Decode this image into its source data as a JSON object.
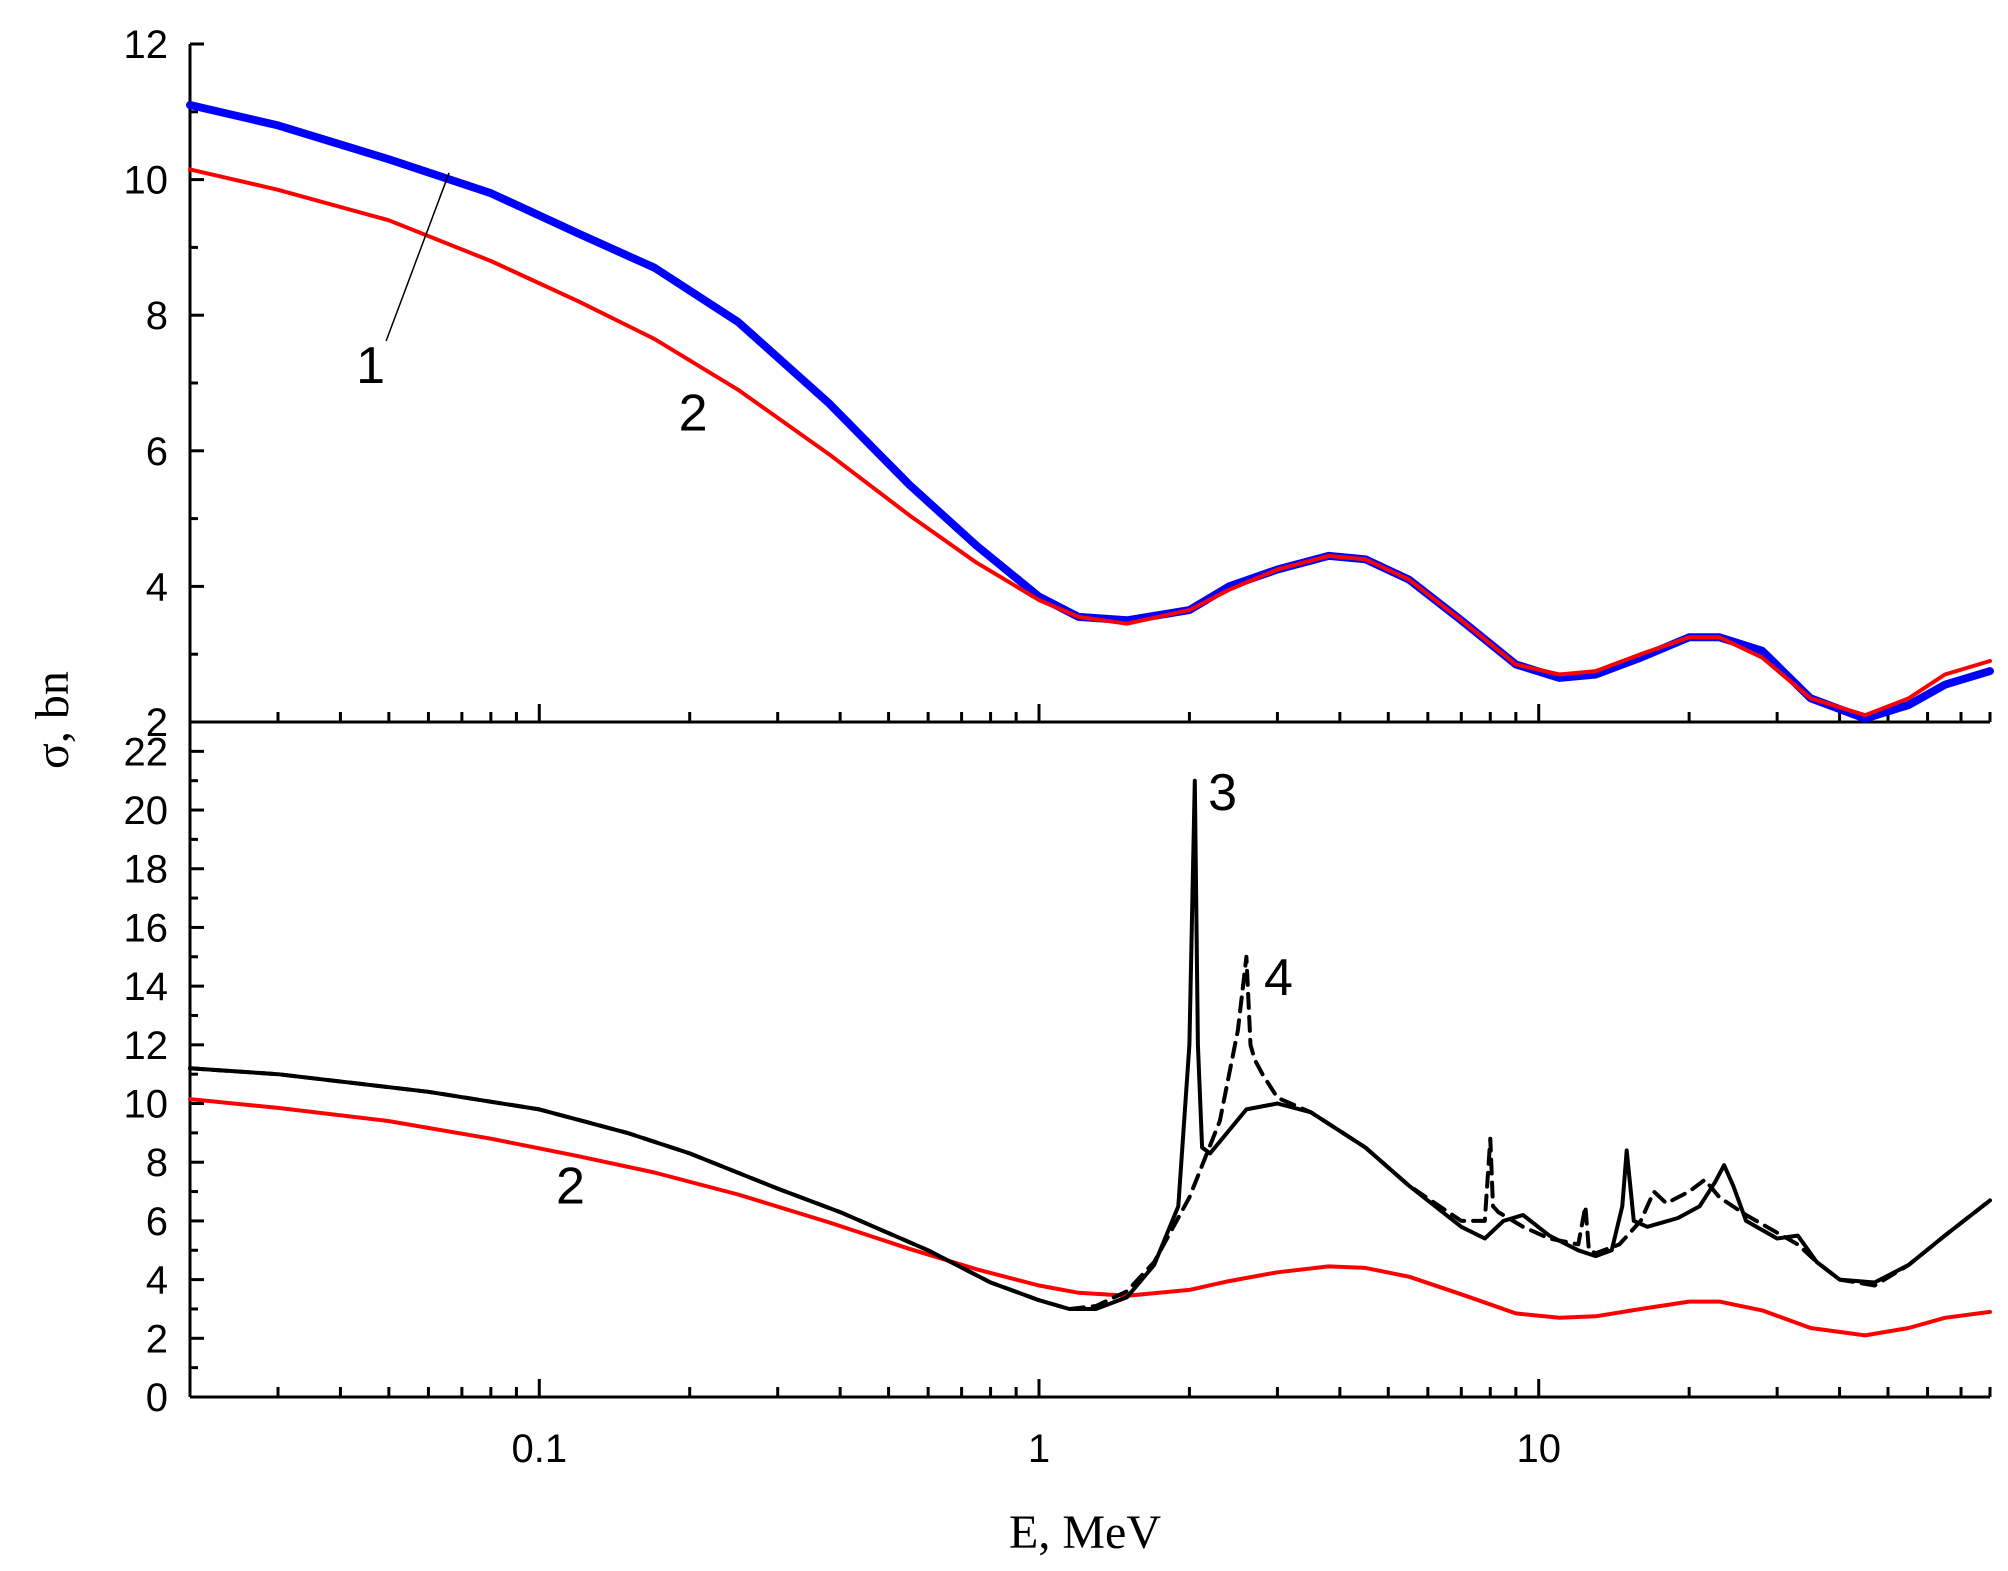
{
  "chart_data": {
    "type": "line",
    "xlabel": "E, MeV",
    "ylabel": "σ, bn",
    "x_scale": "log",
    "xlim": [
      0.02,
      80
    ],
    "x_tick_labels": [
      "0.1",
      "1",
      "10"
    ],
    "colors": {
      "curve1": "#0000ff",
      "curve2": "#ff0000",
      "curve3": "#000000",
      "curve4": "#000000"
    },
    "panels": [
      {
        "name": "top",
        "ylim": [
          2,
          12
        ],
        "y_tick_labels": [
          "2",
          "4",
          "6",
          "8",
          "10",
          "12"
        ],
        "series": [
          {
            "name": "1",
            "style": "thick-solid",
            "color": "#0000ff",
            "x": [
              0.02,
              0.03,
              0.05,
              0.08,
              0.12,
              0.17,
              0.25,
              0.38,
              0.55,
              0.75,
              1.0,
              1.2,
              1.5,
              2.0,
              2.4,
              3.0,
              3.8,
              4.5,
              5.5,
              7,
              9,
              11,
              13,
              16,
              20,
              23,
              28,
              35,
              45,
              55,
              65,
              80
            ],
            "y": [
              11.1,
              10.8,
              10.3,
              9.8,
              9.2,
              8.7,
              7.9,
              6.7,
              5.5,
              4.6,
              3.85,
              3.55,
              3.5,
              3.65,
              4.0,
              4.25,
              4.45,
              4.4,
              4.1,
              3.5,
              2.85,
              2.65,
              2.7,
              2.95,
              3.25,
              3.25,
              3.05,
              2.35,
              2.05,
              2.25,
              2.55,
              2.75
            ]
          },
          {
            "name": "2",
            "style": "solid",
            "color": "#ff0000",
            "x": [
              0.02,
              0.03,
              0.05,
              0.08,
              0.12,
              0.17,
              0.25,
              0.38,
              0.55,
              0.75,
              1.0,
              1.2,
              1.5,
              2.0,
              2.4,
              3.0,
              3.8,
              4.5,
              5.5,
              7,
              9,
              11,
              13,
              16,
              20,
              23,
              28,
              35,
              45,
              55,
              65,
              80
            ],
            "y": [
              10.15,
              9.85,
              9.4,
              8.8,
              8.2,
              7.65,
              6.9,
              5.95,
              5.05,
              4.35,
              3.8,
              3.55,
              3.45,
              3.65,
              3.95,
              4.25,
              4.45,
              4.4,
              4.1,
              3.5,
              2.85,
              2.7,
              2.75,
              3.0,
              3.25,
              3.25,
              2.95,
              2.35,
              2.1,
              2.35,
              2.7,
              2.9
            ]
          }
        ],
        "annotations": [
          {
            "text": "1",
            "x": 0.043,
            "y": 7.0,
            "leader_to_x": 0.066,
            "leader_to_y": 10.1
          },
          {
            "text": "2",
            "x": 0.19,
            "y": 6.3
          }
        ]
      },
      {
        "name": "bottom",
        "ylim": [
          0,
          23
        ],
        "y_tick_labels": [
          "0",
          "2",
          "4",
          "6",
          "8",
          "10",
          "12",
          "14",
          "16",
          "18",
          "20",
          "22"
        ],
        "series": [
          {
            "name": "2",
            "style": "solid",
            "color": "#ff0000",
            "x": [
              0.02,
              0.03,
              0.05,
              0.08,
              0.12,
              0.17,
              0.25,
              0.38,
              0.55,
              0.75,
              1.0,
              1.2,
              1.5,
              2.0,
              2.4,
              3.0,
              3.8,
              4.5,
              5.5,
              7,
              9,
              11,
              13,
              16,
              20,
              23,
              28,
              35,
              45,
              55,
              65,
              80
            ],
            "y": [
              10.15,
              9.85,
              9.4,
              8.8,
              8.2,
              7.65,
              6.9,
              5.95,
              5.05,
              4.35,
              3.8,
              3.55,
              3.45,
              3.65,
              3.95,
              4.25,
              4.45,
              4.4,
              4.1,
              3.5,
              2.85,
              2.7,
              2.75,
              3.0,
              3.25,
              3.25,
              2.95,
              2.35,
              2.1,
              2.35,
              2.7,
              2.9
            ]
          },
          {
            "name": "3",
            "style": "solid",
            "color": "#000000",
            "x": [
              0.02,
              0.03,
              0.06,
              0.1,
              0.15,
              0.2,
              0.3,
              0.4,
              0.6,
              0.8,
              1.0,
              1.15,
              1.3,
              1.5,
              1.7,
              1.9,
              2.0,
              2.05,
              2.08,
              2.12,
              2.2,
              2.6,
              3.0,
              3.5,
              4.5,
              5.5,
              7.0,
              7.8,
              8.5,
              9.3,
              10.5,
              12.0,
              13.0,
              14.0,
              14.7,
              15.0,
              15.5,
              16.5,
              19.0,
              21.0,
              22.5,
              23.5,
              24.5,
              26.0,
              30.0,
              33.0,
              36.0,
              40.0,
              47.0,
              55.0,
              65.0,
              80.0
            ],
            "y": [
              11.2,
              11.0,
              10.4,
              9.8,
              9.0,
              8.3,
              7.1,
              6.3,
              5.0,
              3.9,
              3.3,
              3.0,
              3.0,
              3.4,
              4.5,
              6.5,
              12.0,
              21.0,
              12.0,
              8.5,
              8.3,
              9.8,
              10.0,
              9.7,
              8.5,
              7.2,
              5.8,
              5.4,
              6.0,
              6.2,
              5.5,
              5.0,
              4.8,
              5.0,
              6.5,
              8.4,
              6.0,
              5.8,
              6.1,
              6.5,
              7.3,
              7.9,
              7.2,
              6.0,
              5.4,
              5.5,
              4.6,
              4.0,
              3.9,
              4.5,
              5.5,
              6.7
            ]
          },
          {
            "name": "4",
            "style": "dashed",
            "color": "#000000",
            "x": [
              0.02,
              0.03,
              0.06,
              0.1,
              0.15,
              0.2,
              0.3,
              0.4,
              0.6,
              0.8,
              1.0,
              1.15,
              1.3,
              1.5,
              1.7,
              2.0,
              2.3,
              2.5,
              2.6,
              2.65,
              2.7,
              2.8,
              3.0,
              3.5,
              4.5,
              5.5,
              7.0,
              7.8,
              8.0,
              8.1,
              8.3,
              9.3,
              10.5,
              12.0,
              12.4,
              12.6,
              13.0,
              14.5,
              16.0,
              17.0,
              18.0,
              20.0,
              21.5,
              23.0,
              26.0,
              30.0,
              33.0,
              36.0,
              40.0,
              47.0,
              55.0,
              65.0,
              80.0
            ],
            "y": [
              11.2,
              11.0,
              10.4,
              9.8,
              9.0,
              8.3,
              7.1,
              6.3,
              5.0,
              3.9,
              3.3,
              3.0,
              3.1,
              3.6,
              4.6,
              6.8,
              9.4,
              12.5,
              15.0,
              12.0,
              11.5,
              11.0,
              10.2,
              9.7,
              8.5,
              7.2,
              6.0,
              6.0,
              8.8,
              6.5,
              6.3,
              5.8,
              5.4,
              5.2,
              6.5,
              5.0,
              4.9,
              5.2,
              6.0,
              7.0,
              6.6,
              7.0,
              7.4,
              6.8,
              6.2,
              5.6,
              5.2,
              4.6,
              4.0,
              3.8,
              4.5,
              5.5,
              6.7
            ]
          }
        ],
        "annotations": [
          {
            "text": "3",
            "x": 2.18,
            "y": 20.0
          },
          {
            "text": "4",
            "x": 2.82,
            "y": 13.7
          },
          {
            "text": "2",
            "x": 0.108,
            "y": 6.6
          }
        ]
      }
    ]
  }
}
